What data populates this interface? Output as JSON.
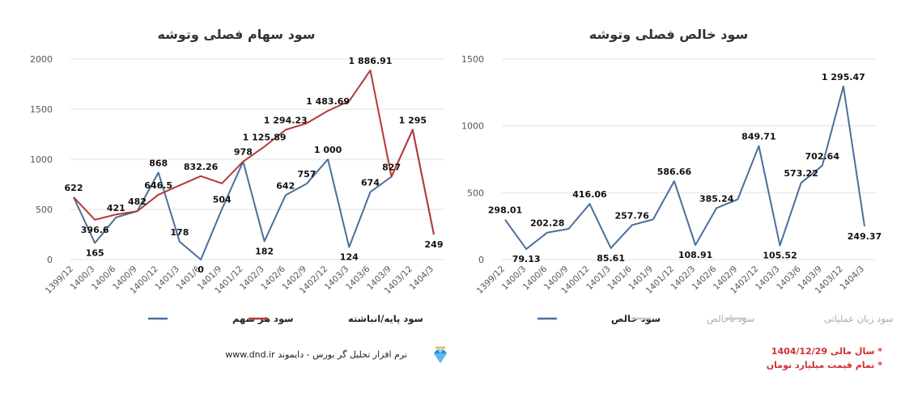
{
  "chart_data": [
    {
      "type": "line",
      "title": "سود سهام فصلی وتوشه",
      "categories": [
        "1399/12",
        "1400/3",
        "1400/6",
        "1400/9",
        "1400/12",
        "1401/3",
        "1401/6",
        "1401/9",
        "1401/12",
        "1402/3",
        "1402/6",
        "1402/9",
        "1402/12",
        "1403/3",
        "1403/6",
        "1403/9",
        "1403/12",
        "1404/3"
      ],
      "ylim": [
        0,
        2000
      ],
      "yticks": [
        "0",
        "500",
        "1000",
        "1500",
        "2000"
      ],
      "grid": true,
      "legend": "bottom",
      "series": [
        {
          "name": "سود هر سهم",
          "color": "#4a6f9a",
          "values": [
            622,
            165,
            421,
            482,
            868,
            178,
            0,
            504,
            978,
            182,
            642,
            757,
            1000,
            124,
            674,
            827,
            1295,
            249
          ],
          "labels": [
            "622",
            "165",
            "421",
            "482",
            "868",
            "178",
            "0",
            "504",
            "978",
            "182",
            "642",
            "757",
            "1 000",
            "124",
            "674",
            "827",
            "1 295",
            "249"
          ]
        },
        {
          "name": "سود پایه/انباشته",
          "color": "#b23a3a",
          "values": [
            622,
            396.6,
            450,
            482,
            646.5,
            740,
            832.26,
            760,
            978,
            1125.89,
            1294.23,
            1360,
            1483.69,
            1580,
            1886.91,
            827,
            1295,
            249
          ],
          "labels": [
            "",
            "396.6",
            "",
            "",
            "646.5",
            "",
            "832.26",
            "",
            "",
            "1 125.89",
            "1 294.23",
            "",
            "1 483.69",
            "",
            "1 886.91",
            "",
            "",
            ""
          ]
        }
      ]
    },
    {
      "type": "line",
      "title": "سود خالص فصلی وتوشه",
      "categories": [
        "1399/12",
        "1400/3",
        "1400/6",
        "1400/9",
        "1400/12",
        "1401/3",
        "1401/6",
        "1401/9",
        "1401/12",
        "1402/3",
        "1402/6",
        "1402/9",
        "1402/12",
        "1403/3",
        "1403/6",
        "1403/9",
        "1403/12",
        "1404/3"
      ],
      "ylim": [
        0,
        1500
      ],
      "yticks": [
        "0",
        "500",
        "1000",
        "1500"
      ],
      "grid": true,
      "legend": "bottom",
      "series": [
        {
          "name": "سود خالص",
          "color": "#4a6f9a",
          "values": [
            298.01,
            79.13,
            202.28,
            230,
            416.06,
            85.61,
            257.76,
            300,
            586.66,
            108.91,
            385.24,
            450,
            849.71,
            105.52,
            573.22,
            702.64,
            1295.47,
            249.37
          ],
          "labels": [
            "298.01",
            "79.13",
            "202.28",
            "",
            "416.06",
            "85.61",
            "257.76",
            "",
            "586.66",
            "108.91",
            "385.24",
            "",
            "849.71",
            "105.52",
            "573.22",
            "702.64",
            "1 295.47",
            "249.37"
          ]
        }
      ],
      "legend_entries": [
        {
          "name": "سود خالص",
          "color": "#4a6f9a"
        },
        {
          "name": "سود ناخالص",
          "color": "#c8c8c8"
        },
        {
          "name": "سود زیان عملیاتی",
          "color": "#c8c8c8"
        }
      ]
    }
  ],
  "footer": {
    "credit": "نرم افزار تحلیل گر بورس - دایموند  www.dnd.ir",
    "notes": [
      "* سال مالی 1404/12/29",
      "* تمام قیمت میلیارد تومان"
    ]
  }
}
